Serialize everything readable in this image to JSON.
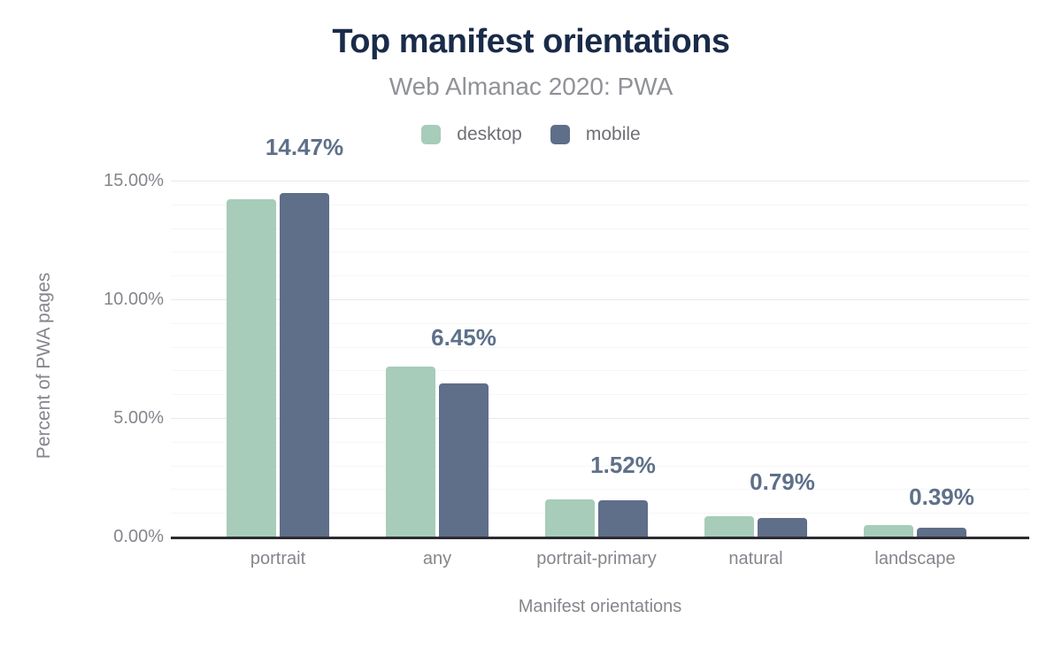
{
  "header": {
    "title": "Top manifest orientations",
    "subtitle": "Web Almanac 2020: PWA"
  },
  "legend": {
    "items": [
      {
        "label": "desktop",
        "color": "#a7ccb9"
      },
      {
        "label": "mobile",
        "color": "#5f6e89"
      }
    ]
  },
  "colors": {
    "title": "#1a2b49",
    "subtitle": "#909298",
    "axis_text": "#85868c",
    "annotation": "#5e7089",
    "desktop_bar": "#a7ccb9",
    "mobile_bar": "#5f6e89",
    "axis_line": "#2b2b30",
    "grid_major": "#e9e9eb",
    "grid_minor": "#f6f6f7"
  },
  "chart_data": {
    "type": "bar",
    "title": "Top manifest orientations",
    "subtitle": "Web Almanac 2020: PWA",
    "xlabel": "Manifest orientations",
    "ylabel": "Percent of PWA pages",
    "categories": [
      "portrait",
      "any",
      "portrait-primary",
      "natural",
      "landscape"
    ],
    "series": [
      {
        "name": "desktop",
        "color": "#a7ccb9",
        "values": [
          14.21,
          7.17,
          1.57,
          0.85,
          0.5
        ]
      },
      {
        "name": "mobile",
        "color": "#5f6e89",
        "values": [
          14.47,
          6.45,
          1.52,
          0.79,
          0.39
        ]
      }
    ],
    "annotations": [
      "14.47%",
      "6.45%",
      "1.52%",
      "0.79%",
      "0.39%"
    ],
    "annotated_series": "mobile",
    "ylim": [
      0,
      15
    ],
    "yticks": [
      {
        "value": 0,
        "label": "0.00%"
      },
      {
        "value": 5,
        "label": "5.00%"
      },
      {
        "value": 10,
        "label": "10.00%"
      },
      {
        "value": 15,
        "label": "15.00%"
      }
    ],
    "grid": "horizontal minor lines every 1%, major lines every 5%",
    "legend_position": "top center"
  }
}
